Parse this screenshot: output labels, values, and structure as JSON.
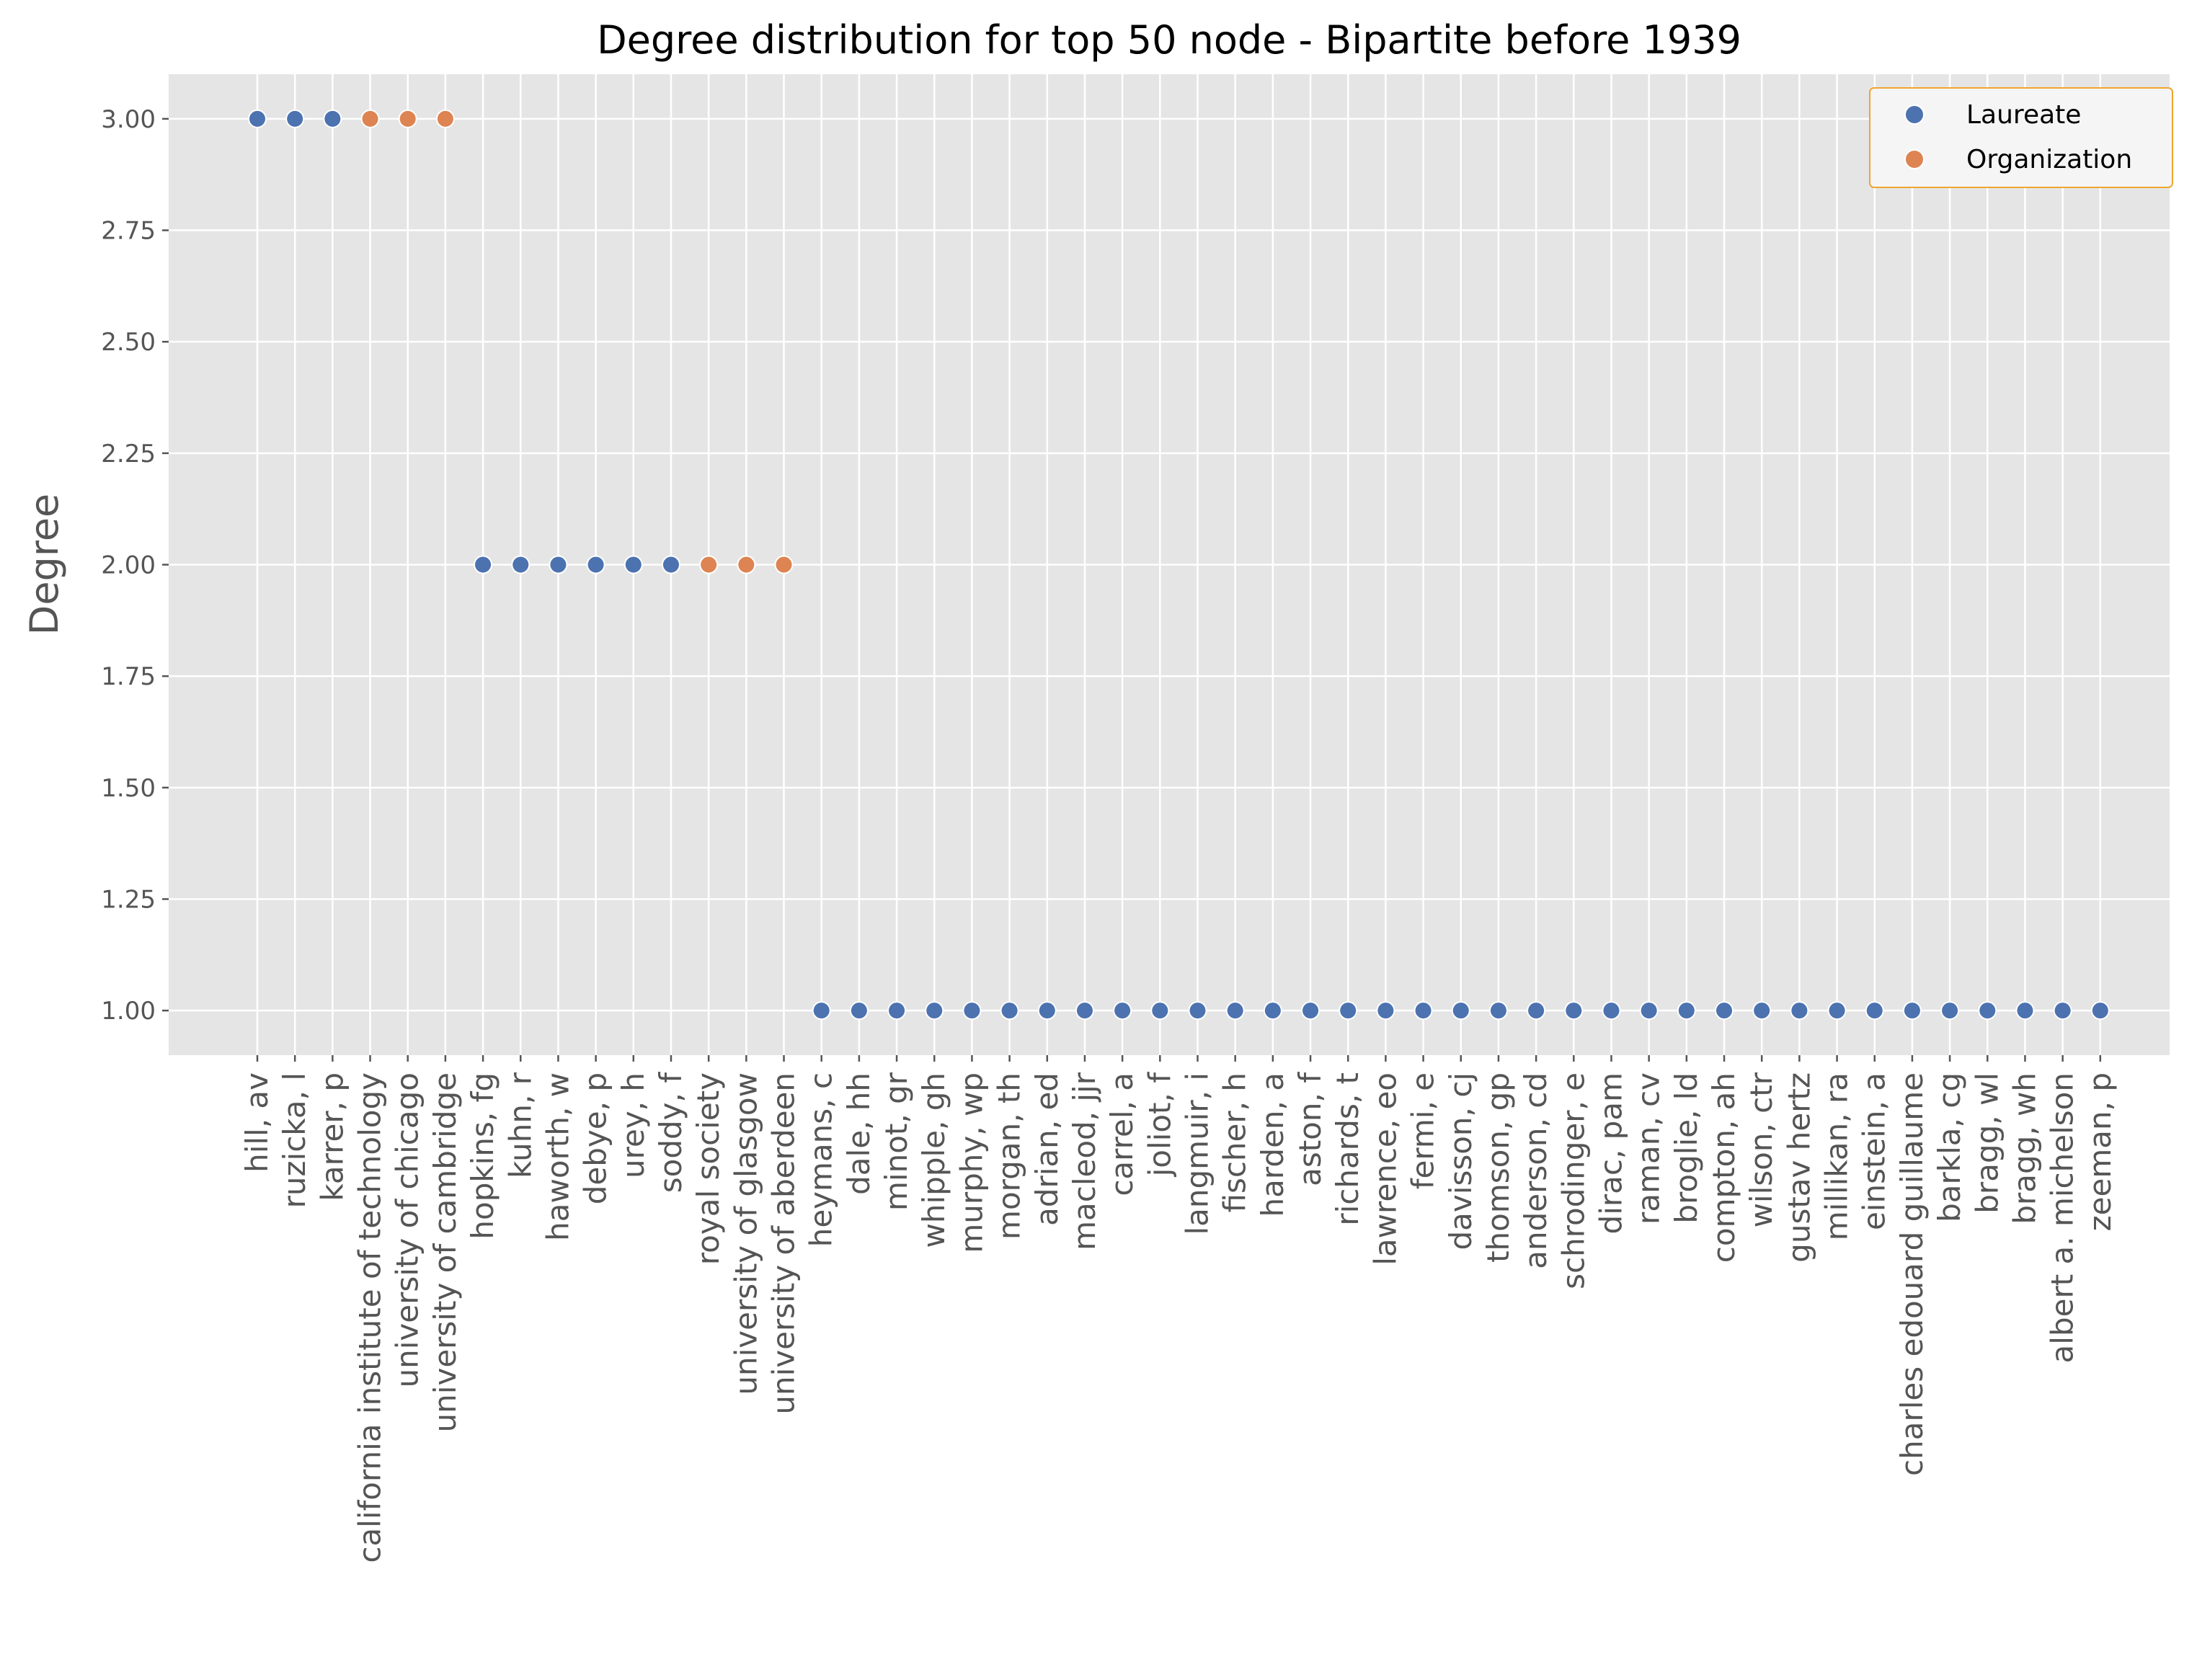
{
  "chart_data": {
    "type": "scatter",
    "title": "Degree distribution for top 50 node - Bipartite before 1939",
    "xlabel": "",
    "ylabel": "Degree",
    "ylim": [
      0.9,
      3.1
    ],
    "yticks": [
      "1.00",
      "1.25",
      "1.50",
      "1.75",
      "2.00",
      "2.25",
      "2.50",
      "2.75",
      "3.00"
    ],
    "grid": true,
    "legend_position": "top-right",
    "categories": [
      "hill, av",
      "ruzicka, l",
      "karrer, p",
      "california institute of technology",
      "university of chicago",
      "university of cambridge",
      "hopkins, fg",
      "kuhn, r",
      "haworth, w",
      "debye, p",
      "urey, h",
      "soddy, f",
      "royal society",
      "university of glasgow",
      "university of aberdeen",
      "heymans, c",
      "dale, hh",
      "minot, gr",
      "whipple, gh",
      "murphy, wp",
      "morgan, th",
      "adrian, ed",
      "macleod, jjr",
      "carrel, a",
      "joliot, f",
      "langmuir, i",
      "fischer, h",
      "harden, a",
      "aston, f",
      "richards, t",
      "lawrence, eo",
      "fermi, e",
      "davisson, cj",
      "thomson, gp",
      "anderson, cd",
      "schrodinger, e",
      "dirac, pam",
      "raman, cv",
      "broglie, ld",
      "compton, ah",
      "wilson, ctr",
      "gustav hertz",
      "millikan, ra",
      "einstein, a",
      "charles edouard guillaume",
      "barkla, cg",
      "bragg, wl",
      "bragg, wh",
      "albert a. michelson",
      "zeeman, p"
    ],
    "values": [
      3,
      3,
      3,
      3,
      3,
      3,
      2,
      2,
      2,
      2,
      2,
      2,
      2,
      2,
      2,
      1,
      1,
      1,
      1,
      1,
      1,
      1,
      1,
      1,
      1,
      1,
      1,
      1,
      1,
      1,
      1,
      1,
      1,
      1,
      1,
      1,
      1,
      1,
      1,
      1,
      1,
      1,
      1,
      1,
      1,
      1,
      1,
      1,
      1,
      1
    ],
    "node_type": [
      "Laureate",
      "Laureate",
      "Laureate",
      "Organization",
      "Organization",
      "Organization",
      "Laureate",
      "Laureate",
      "Laureate",
      "Laureate",
      "Laureate",
      "Laureate",
      "Organization",
      "Organization",
      "Organization",
      "Laureate",
      "Laureate",
      "Laureate",
      "Laureate",
      "Laureate",
      "Laureate",
      "Laureate",
      "Laureate",
      "Laureate",
      "Laureate",
      "Laureate",
      "Laureate",
      "Laureate",
      "Laureate",
      "Laureate",
      "Laureate",
      "Laureate",
      "Laureate",
      "Laureate",
      "Laureate",
      "Laureate",
      "Laureate",
      "Laureate",
      "Laureate",
      "Laureate",
      "Laureate",
      "Laureate",
      "Laureate",
      "Laureate",
      "Laureate",
      "Laureate",
      "Laureate",
      "Laureate",
      "Laureate",
      "Laureate"
    ],
    "series": [
      {
        "name": "Laureate",
        "color": "#4c72b0"
      },
      {
        "name": "Organization",
        "color": "#dd8452"
      }
    ],
    "colors": {
      "plot_background": "#e5e5e5",
      "grid": "#ffffff",
      "legend_border": "#f0a52e",
      "legend_background": "#f5f5f5"
    }
  }
}
